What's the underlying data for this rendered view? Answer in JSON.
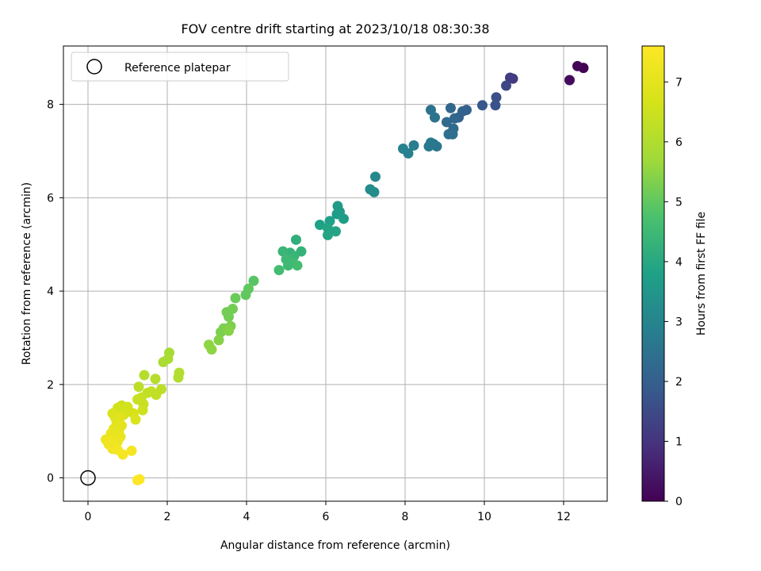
{
  "chart_data": {
    "type": "scatter",
    "title": "FOV centre drift starting at 2023/10/18 08:30:38",
    "xlabel": "Angular distance from reference (arcmin)",
    "ylabel": "Rotation from reference (arcmin)",
    "xlim": [
      -0.62,
      13.1
    ],
    "ylim": [
      -0.5,
      9.25
    ],
    "xticks": [
      0,
      2,
      4,
      6,
      8,
      10,
      12
    ],
    "yticks": [
      0,
      2,
      4,
      6,
      8
    ],
    "grid": true,
    "legend": {
      "placement": "top-left",
      "entries": [
        "Reference platepar"
      ]
    },
    "reference_point": {
      "x": 0,
      "y": 0,
      "marker": "open-circle",
      "color": "#000000"
    },
    "colorbar": {
      "label": "Hours from first FF file",
      "colormap": "viridis",
      "range": [
        0,
        7.6
      ],
      "ticks": [
        0,
        1,
        2,
        3,
        4,
        5,
        6,
        7
      ]
    },
    "points": [
      {
        "x": 12.5,
        "y": 8.78,
        "h": 0.0
      },
      {
        "x": 12.35,
        "y": 8.82,
        "h": 0.1
      },
      {
        "x": 12.15,
        "y": 8.52,
        "h": 0.2
      },
      {
        "x": 10.72,
        "y": 8.55,
        "h": 1.1
      },
      {
        "x": 10.65,
        "y": 8.57,
        "h": 1.2
      },
      {
        "x": 10.55,
        "y": 8.4,
        "h": 1.4
      },
      {
        "x": 10.3,
        "y": 8.15,
        "h": 1.6
      },
      {
        "x": 10.28,
        "y": 7.98,
        "h": 1.7
      },
      {
        "x": 9.95,
        "y": 7.98,
        "h": 1.8
      },
      {
        "x": 9.55,
        "y": 7.88,
        "h": 2.0
      },
      {
        "x": 9.45,
        "y": 7.85,
        "h": 2.1
      },
      {
        "x": 9.35,
        "y": 7.72,
        "h": 2.1
      },
      {
        "x": 9.25,
        "y": 7.7,
        "h": 2.2
      },
      {
        "x": 9.15,
        "y": 7.92,
        "h": 2.2
      },
      {
        "x": 9.05,
        "y": 7.62,
        "h": 2.3
      },
      {
        "x": 9.22,
        "y": 7.48,
        "h": 2.3
      },
      {
        "x": 9.1,
        "y": 7.36,
        "h": 2.4
      },
      {
        "x": 9.2,
        "y": 7.36,
        "h": 2.4
      },
      {
        "x": 8.75,
        "y": 7.72,
        "h": 2.5
      },
      {
        "x": 8.65,
        "y": 7.88,
        "h": 2.5
      },
      {
        "x": 8.8,
        "y": 7.1,
        "h": 2.6
      },
      {
        "x": 8.72,
        "y": 7.15,
        "h": 2.6
      },
      {
        "x": 8.65,
        "y": 7.18,
        "h": 2.7
      },
      {
        "x": 8.6,
        "y": 7.1,
        "h": 2.7
      },
      {
        "x": 8.22,
        "y": 7.12,
        "h": 2.8
      },
      {
        "x": 8.08,
        "y": 6.95,
        "h": 2.9
      },
      {
        "x": 7.95,
        "y": 7.05,
        "h": 2.9
      },
      {
        "x": 7.25,
        "y": 6.45,
        "h": 3.1
      },
      {
        "x": 7.22,
        "y": 6.12,
        "h": 3.2
      },
      {
        "x": 7.12,
        "y": 6.18,
        "h": 3.2
      },
      {
        "x": 6.3,
        "y": 5.82,
        "h": 3.6
      },
      {
        "x": 6.35,
        "y": 5.7,
        "h": 3.6
      },
      {
        "x": 6.28,
        "y": 5.65,
        "h": 3.7
      },
      {
        "x": 6.45,
        "y": 5.55,
        "h": 3.7
      },
      {
        "x": 6.1,
        "y": 5.5,
        "h": 3.8
      },
      {
        "x": 5.85,
        "y": 5.42,
        "h": 3.8
      },
      {
        "x": 6.05,
        "y": 5.35,
        "h": 3.9
      },
      {
        "x": 6.25,
        "y": 5.28,
        "h": 3.9
      },
      {
        "x": 6.05,
        "y": 5.2,
        "h": 3.9
      },
      {
        "x": 5.25,
        "y": 5.1,
        "h": 4.2
      },
      {
        "x": 5.38,
        "y": 4.85,
        "h": 4.3
      },
      {
        "x": 5.1,
        "y": 4.82,
        "h": 4.3
      },
      {
        "x": 4.92,
        "y": 4.85,
        "h": 4.4
      },
      {
        "x": 5.2,
        "y": 4.75,
        "h": 4.4
      },
      {
        "x": 5.0,
        "y": 4.68,
        "h": 4.5
      },
      {
        "x": 5.15,
        "y": 4.62,
        "h": 4.5
      },
      {
        "x": 5.05,
        "y": 4.55,
        "h": 4.5
      },
      {
        "x": 5.28,
        "y": 4.55,
        "h": 4.6
      },
      {
        "x": 4.82,
        "y": 4.45,
        "h": 4.6
      },
      {
        "x": 4.18,
        "y": 4.22,
        "h": 4.9
      },
      {
        "x": 4.05,
        "y": 4.05,
        "h": 5.0
      },
      {
        "x": 3.98,
        "y": 3.92,
        "h": 5.0
      },
      {
        "x": 3.72,
        "y": 3.85,
        "h": 5.1
      },
      {
        "x": 3.65,
        "y": 3.62,
        "h": 5.2
      },
      {
        "x": 3.5,
        "y": 3.55,
        "h": 5.2
      },
      {
        "x": 3.55,
        "y": 3.45,
        "h": 5.2
      },
      {
        "x": 3.6,
        "y": 3.25,
        "h": 5.3
      },
      {
        "x": 3.42,
        "y": 3.2,
        "h": 5.3
      },
      {
        "x": 3.35,
        "y": 3.12,
        "h": 5.3
      },
      {
        "x": 3.55,
        "y": 3.15,
        "h": 5.4
      },
      {
        "x": 3.3,
        "y": 2.95,
        "h": 5.4
      },
      {
        "x": 3.05,
        "y": 2.85,
        "h": 5.5
      },
      {
        "x": 3.12,
        "y": 2.75,
        "h": 5.5
      },
      {
        "x": 2.05,
        "y": 2.68,
        "h": 5.8
      },
      {
        "x": 2.02,
        "y": 2.55,
        "h": 5.9
      },
      {
        "x": 1.9,
        "y": 2.48,
        "h": 5.9
      },
      {
        "x": 2.3,
        "y": 2.25,
        "h": 6.0
      },
      {
        "x": 2.28,
        "y": 2.15,
        "h": 6.0
      },
      {
        "x": 1.42,
        "y": 2.2,
        "h": 6.1
      },
      {
        "x": 1.7,
        "y": 2.12,
        "h": 6.1
      },
      {
        "x": 1.28,
        "y": 1.95,
        "h": 6.2
      },
      {
        "x": 1.85,
        "y": 1.9,
        "h": 6.2
      },
      {
        "x": 1.6,
        "y": 1.85,
        "h": 6.3
      },
      {
        "x": 1.5,
        "y": 1.82,
        "h": 6.3
      },
      {
        "x": 1.72,
        "y": 1.78,
        "h": 6.3
      },
      {
        "x": 1.35,
        "y": 1.72,
        "h": 6.4
      },
      {
        "x": 1.25,
        "y": 1.68,
        "h": 6.4
      },
      {
        "x": 1.4,
        "y": 1.58,
        "h": 6.4
      },
      {
        "x": 1.38,
        "y": 1.45,
        "h": 6.5
      },
      {
        "x": 0.85,
        "y": 1.55,
        "h": 6.5
      },
      {
        "x": 0.75,
        "y": 1.5,
        "h": 6.6
      },
      {
        "x": 1.0,
        "y": 1.52,
        "h": 6.6
      },
      {
        "x": 1.05,
        "y": 1.42,
        "h": 6.7
      },
      {
        "x": 0.95,
        "y": 1.48,
        "h": 6.6
      },
      {
        "x": 1.15,
        "y": 1.38,
        "h": 6.7
      },
      {
        "x": 0.9,
        "y": 1.35,
        "h": 6.7
      },
      {
        "x": 0.62,
        "y": 1.38,
        "h": 6.8
      },
      {
        "x": 0.68,
        "y": 1.3,
        "h": 6.8
      },
      {
        "x": 0.8,
        "y": 1.28,
        "h": 6.9
      },
      {
        "x": 0.72,
        "y": 1.2,
        "h": 6.9
      },
      {
        "x": 1.2,
        "y": 1.25,
        "h": 6.8
      },
      {
        "x": 0.85,
        "y": 1.12,
        "h": 7.0
      },
      {
        "x": 0.65,
        "y": 1.05,
        "h": 7.0
      },
      {
        "x": 0.78,
        "y": 1.0,
        "h": 7.0
      },
      {
        "x": 0.58,
        "y": 0.95,
        "h": 7.1
      },
      {
        "x": 0.72,
        "y": 0.92,
        "h": 7.1
      },
      {
        "x": 0.82,
        "y": 0.88,
        "h": 7.1
      },
      {
        "x": 0.45,
        "y": 0.82,
        "h": 7.2
      },
      {
        "x": 0.6,
        "y": 0.8,
        "h": 7.2
      },
      {
        "x": 0.75,
        "y": 0.78,
        "h": 7.2
      },
      {
        "x": 0.52,
        "y": 0.72,
        "h": 7.3
      },
      {
        "x": 0.68,
        "y": 0.7,
        "h": 7.3
      },
      {
        "x": 0.62,
        "y": 0.62,
        "h": 7.3
      },
      {
        "x": 0.75,
        "y": 0.6,
        "h": 7.4
      },
      {
        "x": 1.1,
        "y": 0.58,
        "h": 7.4
      },
      {
        "x": 0.88,
        "y": 0.5,
        "h": 7.4
      },
      {
        "x": 1.3,
        "y": -0.03,
        "h": 7.55
      },
      {
        "x": 1.25,
        "y": -0.05,
        "h": 7.6
      }
    ]
  }
}
